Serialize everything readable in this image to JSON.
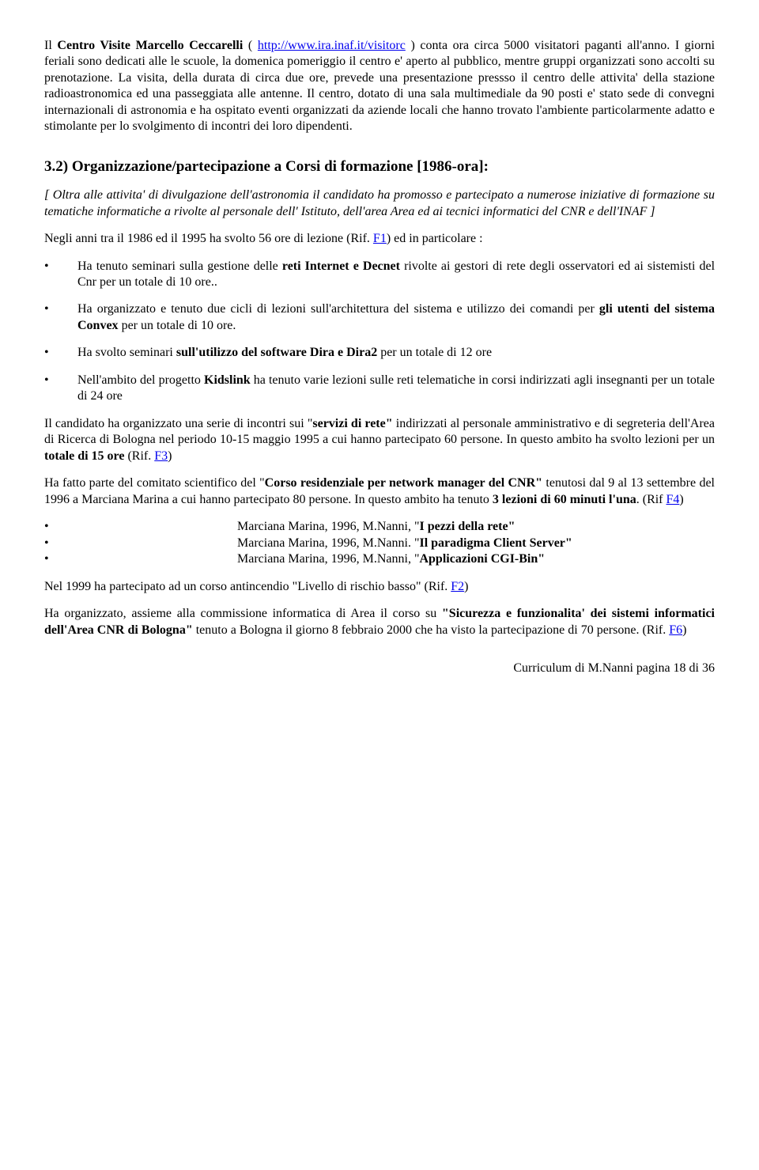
{
  "para1_pre": "Il ",
  "para1_bold1": "Centro Visite Marcello Ceccarelli",
  "para1_mid1": " ( ",
  "para1_link": "http://www.ira.inaf.it/visitorc",
  "para1_rest": " ) conta ora circa 5000 visitatori paganti all'anno. I giorni feriali sono dedicati alle le scuole, la domenica pomeriggio il centro e' aperto al pubblico, mentre gruppi organizzati sono accolti su prenotazione. La visita, della durata di circa due ore, prevede una presentazione pressso il centro delle attivita' della stazione radioastronomica ed una passeggiata alle antenne. Il centro, dotato di una sala multimediale da 90 posti e' stato sede di convegni internazionali di astronomia e ha ospitato eventi organizzati da aziende locali che hanno trovato l'ambiente particolarmente adatto e stimolante per lo svolgimento di incontri dei loro dipendenti.",
  "heading": "3.2) Organizzazione/partecipazione a Corsi di formazione [1986-ora]:",
  "intro_italic": "[ Oltra alle attivita' di divulgazione dell'astronomia il candidato ha promosso e partecipato a numerose iniziative di formazione su tematiche informatiche a rivolte al personale dell' Istituto, dell'area Area ed ai tecnici informatici del CNR e dell'INAF ]",
  "p_pre_f1": "Negli anni tra il 1986 ed il 1995 ha svolto 56 ore di lezione (Rif. ",
  "link_f1": "F1",
  "p_post_f1": ") ed in particolare :",
  "b1_pre": "Ha tenuto seminari sulla gestione delle ",
  "b1_bold": "reti Internet e Decnet",
  "b1_post": " rivolte ai gestori di rete degli osservatori ed ai sistemisti del Cnr per un totale di 10 ore..",
  "b2_pre": "Ha organizzato e tenuto due cicli di lezioni sull'architettura del sistema e utilizzo dei comandi per ",
  "b2_bold": "gli utenti del sistema Convex",
  "b2_post": " per un totale di 10 ore.",
  "b3_pre": "Ha svolto seminari ",
  "b3_bold": "sull'utilizzo del software Dira e Dira2",
  "b3_post": " per un totale di 12 ore",
  "b4_pre": "Nell'ambito del progetto ",
  "b4_bold": "Kidslink",
  "b4_post": " ha tenuto varie lezioni sulle reti telematiche in corsi indirizzati agli insegnanti per un totale di 24 ore",
  "p_f3_1": "Il candidato ha organizzato una serie di incontri sui \"",
  "p_f3_bold1": "servizi di rete\"",
  "p_f3_2": " indirizzati al personale amministrativo e di segreteria dell'Area di Ricerca di Bologna nel periodo 10-15 maggio 1995 a cui hanno partecipato 60 persone. In questo ambito ha svolto lezioni per un ",
  "p_f3_bold2": "totale di 15 ore",
  "p_f3_3": " (Rif. ",
  "link_f3": "F3",
  "p_f3_4": ")",
  "p_f4_1": "Ha fatto parte del comitato scientifico del \"",
  "p_f4_bold1": "Corso residenziale per network manager del CNR\"",
  "p_f4_2": " tenutosi dal 9 al 13 settembre del 1996 a Marciana Marina a cui hanno partecipato 80 persone. In questo ambito ha tenuto ",
  "p_f4_bold2": "3 lezioni di 60 minuti l'una",
  "p_f4_3": ". (Rif ",
  "link_f4": "F4",
  "p_f4_4": ")",
  "lec1_pre": "Marciana Marina, 1996, M.Nanni, \"",
  "lec1_bold": "I pezzi della rete\"",
  "lec2_pre": "Marciana Marina, 1996, M.Nanni. \"",
  "lec2_bold": "Il paradigma Client Server\"",
  "lec3_pre": "Marciana Marina, 1996, M.Nanni, \"",
  "lec3_bold": "Applicazioni CGI-Bin\"",
  "p_f2_1": "Nel 1999 ha partecipato ad un corso antincendio \"Livello di rischio basso\" (Rif. ",
  "link_f2": "F2",
  "p_f2_2": ")",
  "p_f6_1": "Ha organizzato, assieme alla commissione informatica di Area il corso su ",
  "p_f6_bold": "\"Sicurezza e funzionalita' dei sistemi informatici dell'Area CNR di Bologna\"",
  "p_f6_2": " tenuto a Bologna il giorno 8 febbraio 2000 che ha visto la partecipazione di 70 persone. (Rif. ",
  "link_f6": "F6",
  "p_f6_3": ")",
  "footer": "Curriculum di M.Nanni pagina 18 di 36"
}
